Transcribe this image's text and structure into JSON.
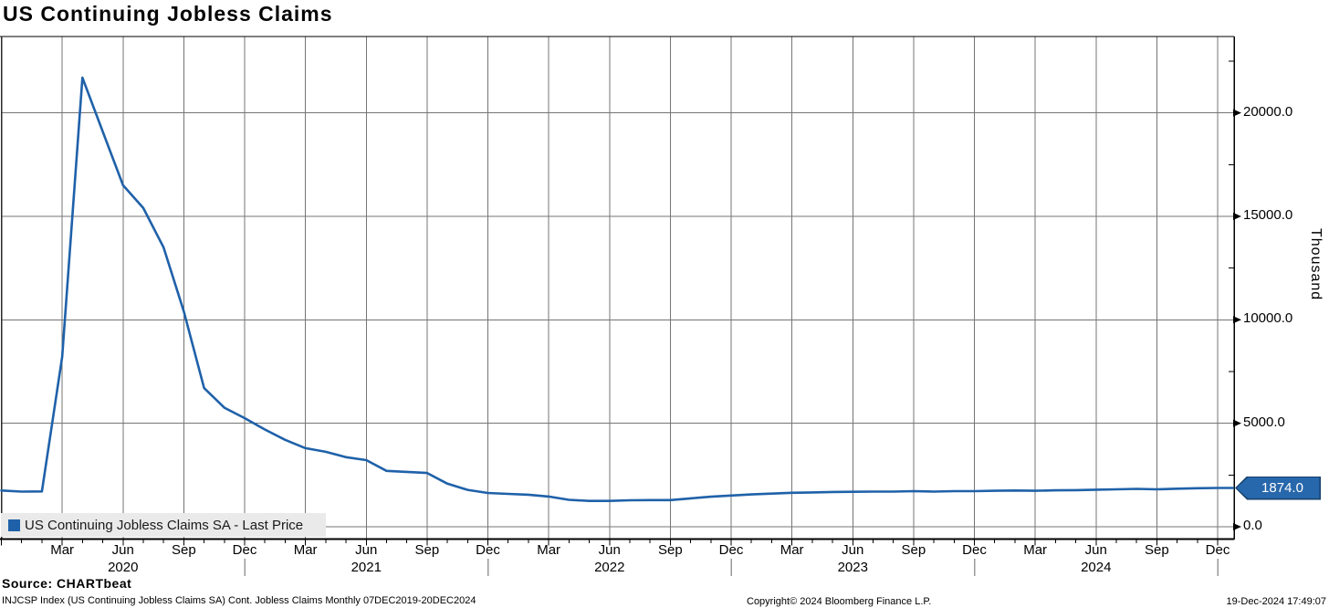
{
  "title": "US Continuing Jobless Claims",
  "unit_label": "Thousand",
  "legend": {
    "label": "US Continuing Jobless Claims SA - Last Price"
  },
  "last_price": {
    "label": "1874.0",
    "value": 1874.0
  },
  "footer": {
    "source": "Source: CHARTbeat",
    "description": "INJCSP Index (US Continuing Jobless Claims SA) Cont. Jobless Claims  Monthly 07DEC2019-20DEC2024",
    "copyright": "Copyright© 2024 Bloomberg Finance L.P.",
    "timestamp": "19-Dec-2024 17:49:07"
  },
  "colors": {
    "line": "#1f61a9",
    "flag_bg": "#2767ab",
    "flag_border": "#16406b",
    "grid": "#757575",
    "year_separator": "#9a9a9a",
    "legend_bg": "#eaeaea"
  },
  "chart_data": {
    "type": "line",
    "title": "US Continuing Jobless Claims",
    "ylabel": "Thousand",
    "ylim": [
      0,
      23700
    ],
    "grid": true,
    "legend_position": "bottom-left",
    "x": [
      "2019-12",
      "2020-01",
      "2020-02",
      "2020-03",
      "2020-04",
      "2020-05",
      "2020-06",
      "2020-07",
      "2020-08",
      "2020-09",
      "2020-10",
      "2020-11",
      "2020-12",
      "2021-01",
      "2021-02",
      "2021-03",
      "2021-04",
      "2021-05",
      "2021-06",
      "2021-07",
      "2021-08",
      "2021-09",
      "2021-10",
      "2021-11",
      "2021-12",
      "2022-01",
      "2022-02",
      "2022-03",
      "2022-04",
      "2022-05",
      "2022-06",
      "2022-07",
      "2022-08",
      "2022-09",
      "2022-10",
      "2022-11",
      "2022-12",
      "2023-01",
      "2023-02",
      "2023-03",
      "2023-04",
      "2023-05",
      "2023-06",
      "2023-07",
      "2023-08",
      "2023-09",
      "2023-10",
      "2023-11",
      "2023-12",
      "2024-01",
      "2024-02",
      "2024-03",
      "2024-04",
      "2024-05",
      "2024-06",
      "2024-07",
      "2024-08",
      "2024-09",
      "2024-10",
      "2024-11",
      "2024-12"
    ],
    "series": [
      {
        "name": "US Continuing Jobless Claims SA - Last Price",
        "values": [
          1750,
          1700,
          1705,
          8200,
          21700,
          19100,
          16500,
          15400,
          13500,
          10400,
          6700,
          5750,
          5250,
          4700,
          4200,
          3800,
          3620,
          3360,
          3220,
          2700,
          2650,
          2600,
          2080,
          1780,
          1630,
          1590,
          1550,
          1460,
          1300,
          1250,
          1250,
          1280,
          1290,
          1290,
          1370,
          1450,
          1510,
          1560,
          1600,
          1640,
          1660,
          1680,
          1690,
          1700,
          1700,
          1720,
          1700,
          1720,
          1720,
          1740,
          1750,
          1740,
          1760,
          1770,
          1790,
          1810,
          1830,
          1810,
          1840,
          1860,
          1874
        ]
      }
    ],
    "y_ticks": [
      {
        "value": 20000,
        "label": "20000.0"
      },
      {
        "value": 15000,
        "label": "15000.0"
      },
      {
        "value": 10000,
        "label": "10000.0"
      },
      {
        "value": 5000,
        "label": "5000.0"
      },
      {
        "value": 0,
        "label": "0.0"
      }
    ],
    "y_minor_ticks": [
      22500,
      17500,
      12500,
      7500,
      2500
    ],
    "x_ticks": [
      {
        "i": 3,
        "label": "Mar"
      },
      {
        "i": 6,
        "label": "Jun"
      },
      {
        "i": 9,
        "label": "Sep"
      },
      {
        "i": 12,
        "label": "Dec"
      },
      {
        "i": 15,
        "label": "Mar"
      },
      {
        "i": 18,
        "label": "Jun"
      },
      {
        "i": 21,
        "label": "Sep"
      },
      {
        "i": 24,
        "label": "Dec"
      },
      {
        "i": 27,
        "label": "Mar"
      },
      {
        "i": 30,
        "label": "Jun"
      },
      {
        "i": 33,
        "label": "Sep"
      },
      {
        "i": 36,
        "label": "Dec"
      },
      {
        "i": 39,
        "label": "Mar"
      },
      {
        "i": 42,
        "label": "Jun"
      },
      {
        "i": 45,
        "label": "Sep"
      },
      {
        "i": 48,
        "label": "Dec"
      },
      {
        "i": 51,
        "label": "Mar"
      },
      {
        "i": 54,
        "label": "Jun"
      },
      {
        "i": 57,
        "label": "Sep"
      },
      {
        "i": 60,
        "label": "Dec"
      }
    ],
    "year_labels": [
      {
        "i": 6,
        "label": "2020"
      },
      {
        "i": 18,
        "label": "2021"
      },
      {
        "i": 30,
        "label": "2022"
      },
      {
        "i": 42,
        "label": "2023"
      },
      {
        "i": 54,
        "label": "2024"
      }
    ],
    "year_separators": [
      12,
      24,
      36,
      48,
      60
    ]
  }
}
